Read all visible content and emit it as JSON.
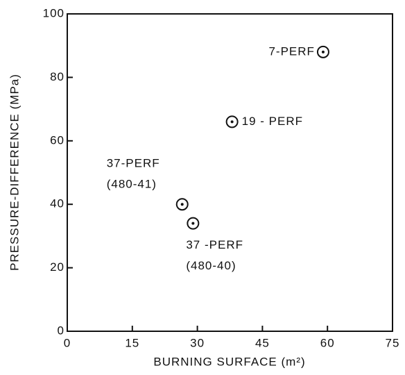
{
  "chart_data": {
    "type": "scatter",
    "xlabel": "BURNING SURFACE (m²)",
    "ylabel": "PRESSURE-DIFFERENCE (MPa)",
    "series": [
      {
        "color": "#111111",
        "x": [
          59,
          38,
          26.5,
          29
        ],
        "values": [
          88,
          66,
          40,
          34
        ],
        "point_labels": [
          [
            "7-PERF"
          ],
          [
            "19 - PERF"
          ],
          [
            "37-PERF",
            "(480-41)"
          ],
          [
            "37 -PERF",
            "(480-40)"
          ]
        ]
      }
    ],
    "xlim": [
      0,
      75
    ],
    "xticks": [
      0,
      15,
      30,
      45,
      60,
      75
    ],
    "ylim": [
      0,
      100
    ],
    "yticks": [
      0,
      20,
      40,
      60,
      80,
      100
    ]
  }
}
